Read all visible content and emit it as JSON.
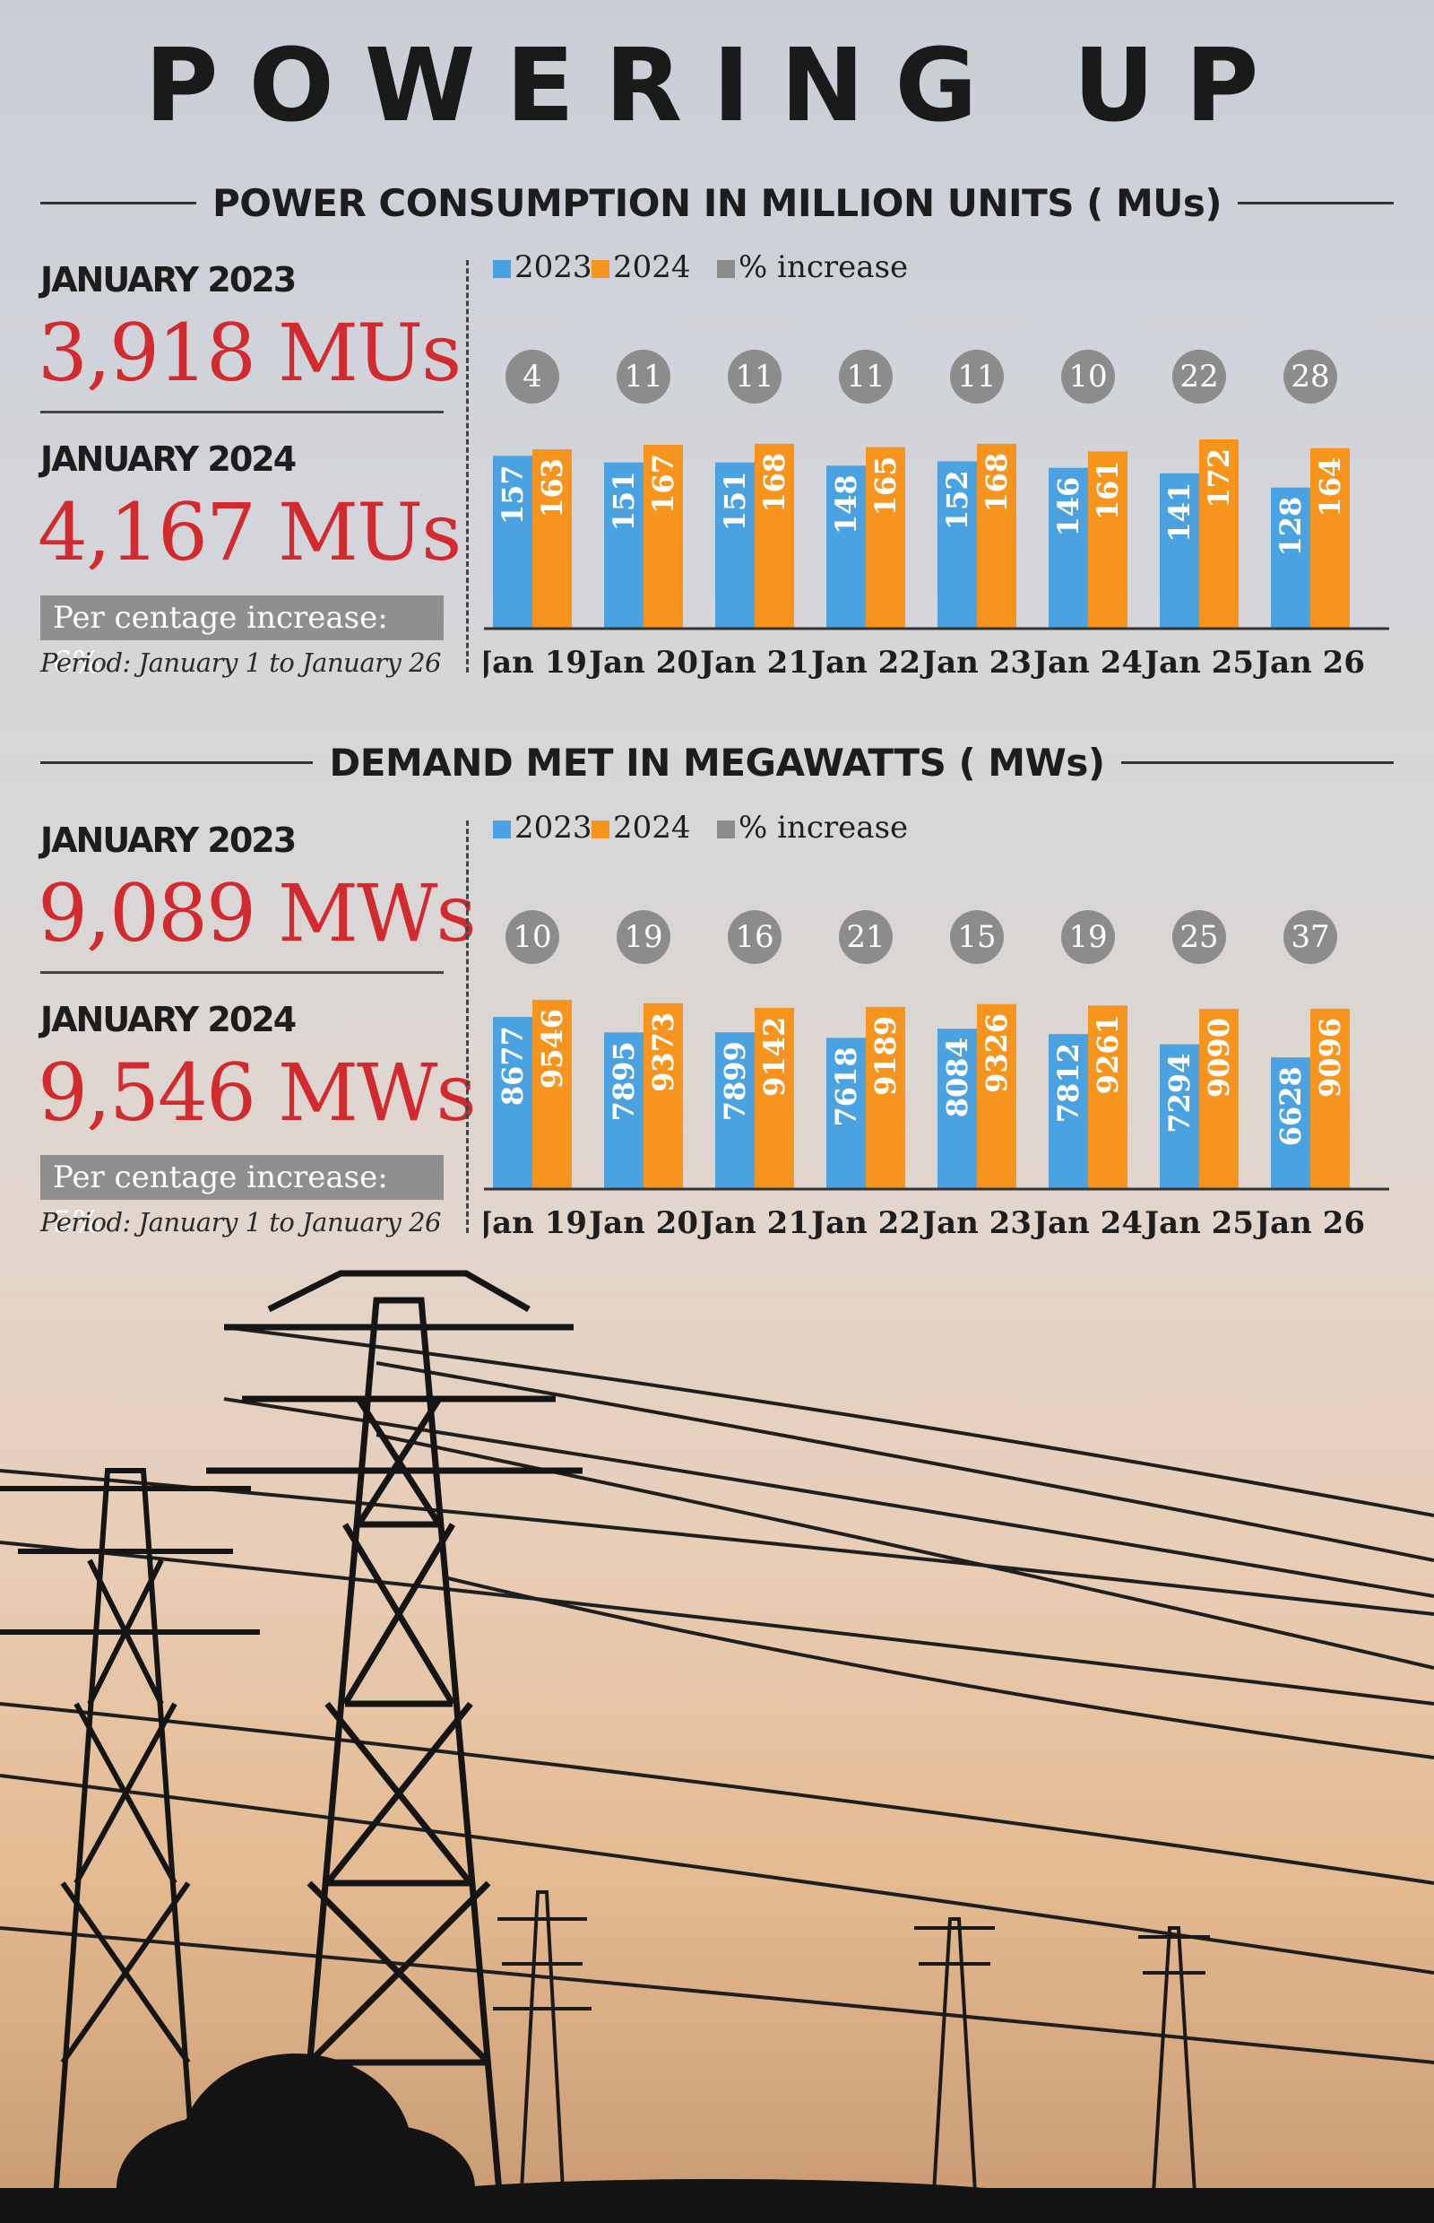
{
  "title": "POWERING UP",
  "colors": {
    "y2023": "#4aa3e0",
    "y2024": "#f7941d",
    "pct": "#8c8c8c",
    "accent": "#d12a2f"
  },
  "sections": [
    {
      "heading": "POWER CONSUMPTION IN MILLION UNITS ( MUs)",
      "stat1_label": "JANUARY 2023",
      "stat1_value": "3,918 MUs",
      "stat2_label": "JANUARY 2024",
      "stat2_value": "4,167 MUs",
      "pct_text": "Per centage increase: 6%",
      "period": "Period: January 1 to January 26"
    },
    {
      "heading": "DEMAND MET IN MEGAWATTS ( MWs)",
      "stat1_label": "JANUARY 2023",
      "stat1_value": "9,089 MWs",
      "stat2_label": "JANUARY 2024",
      "stat2_value": "9,546 MWs",
      "pct_text": "Per centage increase: 5%",
      "period": "Period: January 1 to January 26"
    }
  ],
  "chart_data": [
    {
      "type": "bar",
      "legend": [
        "2023",
        "2024",
        "% increase"
      ],
      "categories": [
        "Jan 19",
        "Jan 20",
        "Jan 21",
        "Jan 22",
        "Jan 23",
        "Jan 24",
        "Jan 25",
        "Jan 26"
      ],
      "series": [
        {
          "name": "2023",
          "values": [
            157,
            151,
            151,
            148,
            152,
            146,
            141,
            128
          ]
        },
        {
          "name": "2024",
          "values": [
            163,
            167,
            168,
            165,
            168,
            161,
            172,
            164
          ]
        }
      ],
      "pct_increase": [
        4,
        11,
        11,
        11,
        11,
        10,
        22,
        28
      ],
      "ylim": [
        0,
        172
      ]
    },
    {
      "type": "bar",
      "legend": [
        "2023",
        "2024",
        "% increase"
      ],
      "categories": [
        "Jan 19",
        "Jan 20",
        "Jan 21",
        "Jan 22",
        "Jan 23",
        "Jan 24",
        "Jan 25",
        "Jan 26"
      ],
      "series": [
        {
          "name": "2023",
          "values": [
            8677,
            7895,
            7899,
            7618,
            8084,
            7812,
            7294,
            6628
          ]
        },
        {
          "name": "2024",
          "values": [
            9546,
            9373,
            9142,
            9189,
            9326,
            9261,
            9090,
            9096
          ]
        }
      ],
      "pct_increase": [
        10,
        19,
        16,
        21,
        15,
        19,
        25,
        37
      ],
      "ylim": [
        0,
        9546
      ]
    }
  ]
}
